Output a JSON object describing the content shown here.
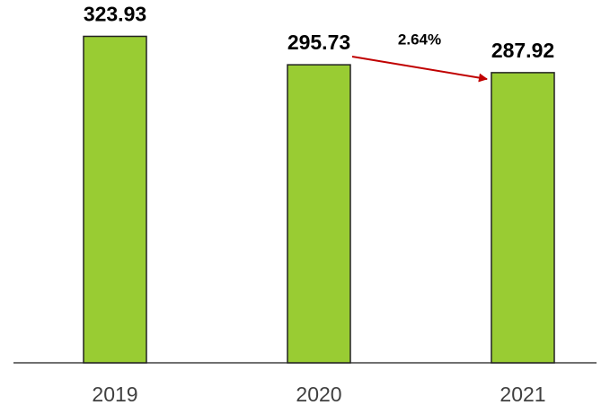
{
  "chart_data": {
    "type": "bar",
    "categories": [
      "2019",
      "2020",
      "2021"
    ],
    "values": [
      323.93,
      295.73,
      287.92
    ],
    "color": "#99cc33",
    "ylim": [
      0,
      360
    ],
    "annotation": "2.64%"
  }
}
